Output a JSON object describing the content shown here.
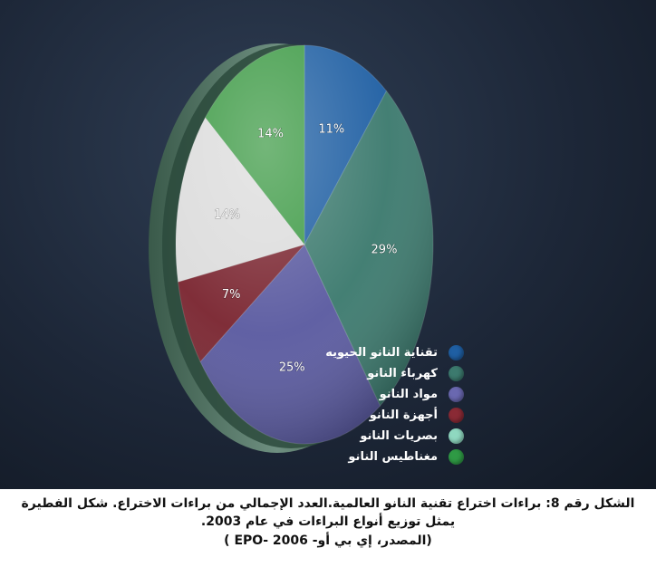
{
  "chart_data": {
    "type": "pie",
    "categories": [
      "تقناية النانو الحيويه",
      "كهرباء النانو",
      "مواد النانو",
      "أجهزة النانو",
      "بصريات النانو",
      "مغناطيس النانو"
    ],
    "values": [
      11,
      29,
      25,
      7,
      14,
      14
    ],
    "value_labels": [
      "11%",
      "29%",
      "25%",
      "7%",
      "14%",
      "14%"
    ],
    "colors": [
      "#1f5fa3",
      "#3c7a6e",
      "#5a5aa0",
      "#7a2530",
      "#dcdcdc",
      "#3d9a45"
    ],
    "legend_colors": [
      "#1f5fa3",
      "#3c7a6e",
      "#6a68b0",
      "#8a2a35",
      "#8fd8c0",
      "#2f9a45"
    ],
    "legend": "right"
  },
  "caption": {
    "line1": "الشكل رقم 8: براءات اختراع تقنية النانو العالمية.العدد الإجمالي من براءات الاختراع. شكل الفطيرة",
    "line2": "يمثل توزيع أنواع البراءات في عام 2003.",
    "source": "(المصدر، إي بي أو-  2006 -EPO )"
  }
}
